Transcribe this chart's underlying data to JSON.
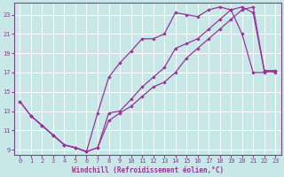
{
  "xlabel": "Windchill (Refroidissement éolien,°C)",
  "xlim": [
    -0.5,
    23.5
  ],
  "ylim": [
    8.5,
    24.2
  ],
  "xticks": [
    0,
    1,
    2,
    3,
    4,
    5,
    6,
    7,
    8,
    9,
    10,
    11,
    12,
    13,
    14,
    15,
    16,
    17,
    18,
    19,
    20,
    21,
    22,
    23
  ],
  "yticks": [
    9,
    11,
    13,
    15,
    17,
    19,
    21,
    23
  ],
  "bg_color": "#c8e8e8",
  "grid_color": "#aad4d4",
  "line_color": "#993399",
  "line1_x": [
    0,
    1,
    2,
    3,
    4,
    5,
    6,
    7,
    8,
    9,
    10,
    11,
    12,
    13,
    14,
    15,
    16,
    17,
    18,
    19,
    20,
    21,
    22,
    23
  ],
  "line1_y": [
    14.0,
    12.5,
    11.5,
    10.5,
    9.5,
    9.2,
    8.8,
    12.8,
    16.5,
    18.0,
    19.2,
    20.5,
    20.5,
    21.0,
    23.2,
    23.0,
    22.8,
    23.5,
    23.8,
    23.5,
    21.0,
    17.0,
    17.0,
    17.2
  ],
  "line2_x": [
    0,
    1,
    2,
    3,
    4,
    5,
    6,
    7,
    8,
    9,
    10,
    11,
    12,
    13,
    14,
    15,
    16,
    17,
    18,
    19,
    20,
    21,
    22,
    23
  ],
  "line2_y": [
    14.0,
    12.5,
    11.5,
    10.5,
    9.5,
    9.2,
    8.8,
    9.2,
    12.8,
    13.0,
    14.2,
    15.5,
    16.5,
    17.5,
    19.5,
    20.0,
    20.5,
    21.5,
    22.5,
    23.5,
    23.8,
    23.2,
    17.2,
    17.2
  ],
  "line3_x": [
    1,
    2,
    3,
    4,
    5,
    6,
    7,
    8,
    9,
    10,
    11,
    12,
    13,
    14,
    15,
    16,
    17,
    18,
    19,
    20,
    21,
    22,
    23
  ],
  "line3_y": [
    12.5,
    11.5,
    10.5,
    9.5,
    9.2,
    8.8,
    9.2,
    12.0,
    12.8,
    13.5,
    14.5,
    15.5,
    16.0,
    17.0,
    18.5,
    19.5,
    20.5,
    21.5,
    22.5,
    23.5,
    23.8,
    17.2,
    17.0
  ]
}
